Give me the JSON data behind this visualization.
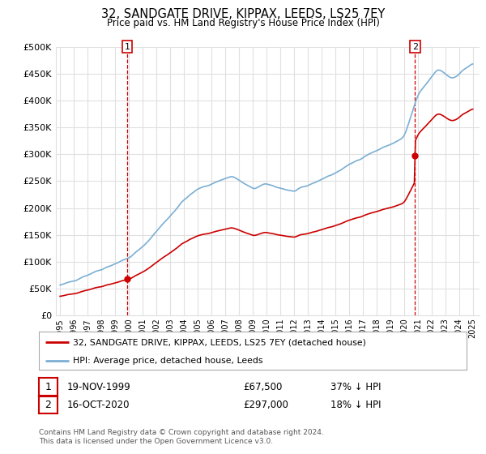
{
  "title": "32, SANDGATE DRIVE, KIPPAX, LEEDS, LS25 7EY",
  "subtitle": "Price paid vs. HM Land Registry's House Price Index (HPI)",
  "hpi_color": "#7bafd4",
  "property_color": "#cc0000",
  "purchase1_date": "19-NOV-1999",
  "purchase1_price": 67500,
  "purchase1_price_str": "£67,500",
  "purchase1_label": "37% ↓ HPI",
  "purchase1_year": 1999.88,
  "purchase2_date": "16-OCT-2020",
  "purchase2_price": 297000,
  "purchase2_price_str": "£297,000",
  "purchase2_label": "18% ↓ HPI",
  "purchase2_year": 2020.79,
  "legend_property": "32, SANDGATE DRIVE, KIPPAX, LEEDS, LS25 7EY (detached house)",
  "legend_hpi": "HPI: Average price, detached house, Leeds",
  "footer": "Contains HM Land Registry data © Crown copyright and database right 2024.\nThis data is licensed under the Open Government Licence v3.0.",
  "ylim": [
    0,
    500000
  ],
  "yticks": [
    0,
    50000,
    100000,
    150000,
    200000,
    250000,
    300000,
    350000,
    400000,
    450000,
    500000
  ],
  "background": "#ffffff",
  "grid_color": "#e0e0e0",
  "hpi_at_purchase1": 107000,
  "hpi_at_purchase2": 362000
}
